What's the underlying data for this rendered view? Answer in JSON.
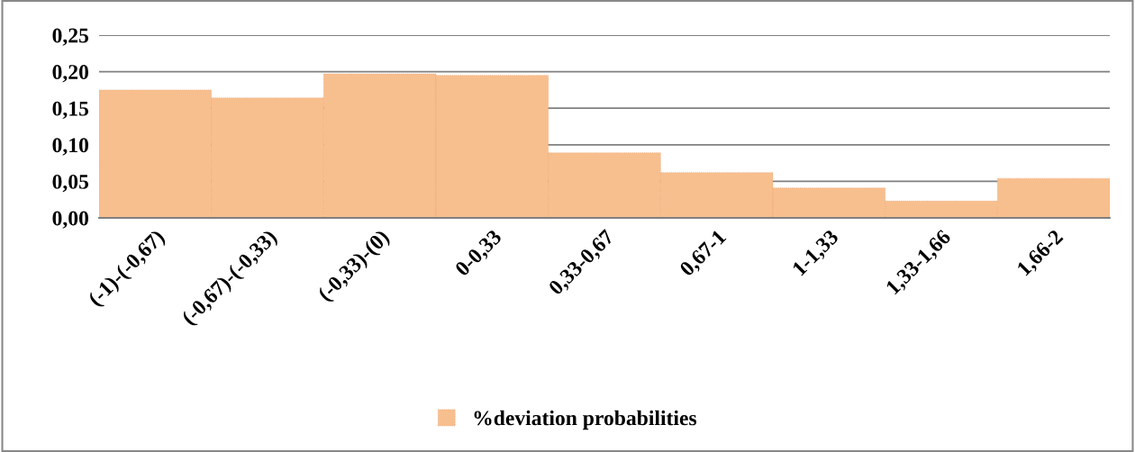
{
  "chart_data": {
    "type": "bar",
    "categories": [
      "(-1)-(-0,67)",
      "(-0,67)-(-0,33)",
      "(-0,33)-(0)",
      "0-0,33",
      "0,33-0,67",
      "0,67-1",
      "1-1,33",
      "1,33-1,66",
      "1,66-2"
    ],
    "series": [
      {
        "name": "%deviation probabilities",
        "color": "#f8bf8e",
        "values": [
          0.175,
          0.164,
          0.197,
          0.195,
          0.089,
          0.062,
          0.041,
          0.023,
          0.054
        ]
      }
    ],
    "ylim": [
      0,
      0.25
    ],
    "yticks": [
      {
        "value": 0,
        "label": "0,00"
      },
      {
        "value": 0.05,
        "label": "0,05"
      },
      {
        "value": 0.1,
        "label": "0,10"
      },
      {
        "value": 0.15,
        "label": "0,15"
      },
      {
        "value": 0.2,
        "label": "0,20"
      },
      {
        "value": 0.25,
        "label": "0,25"
      }
    ],
    "grid": "y",
    "legend": "bottom"
  }
}
